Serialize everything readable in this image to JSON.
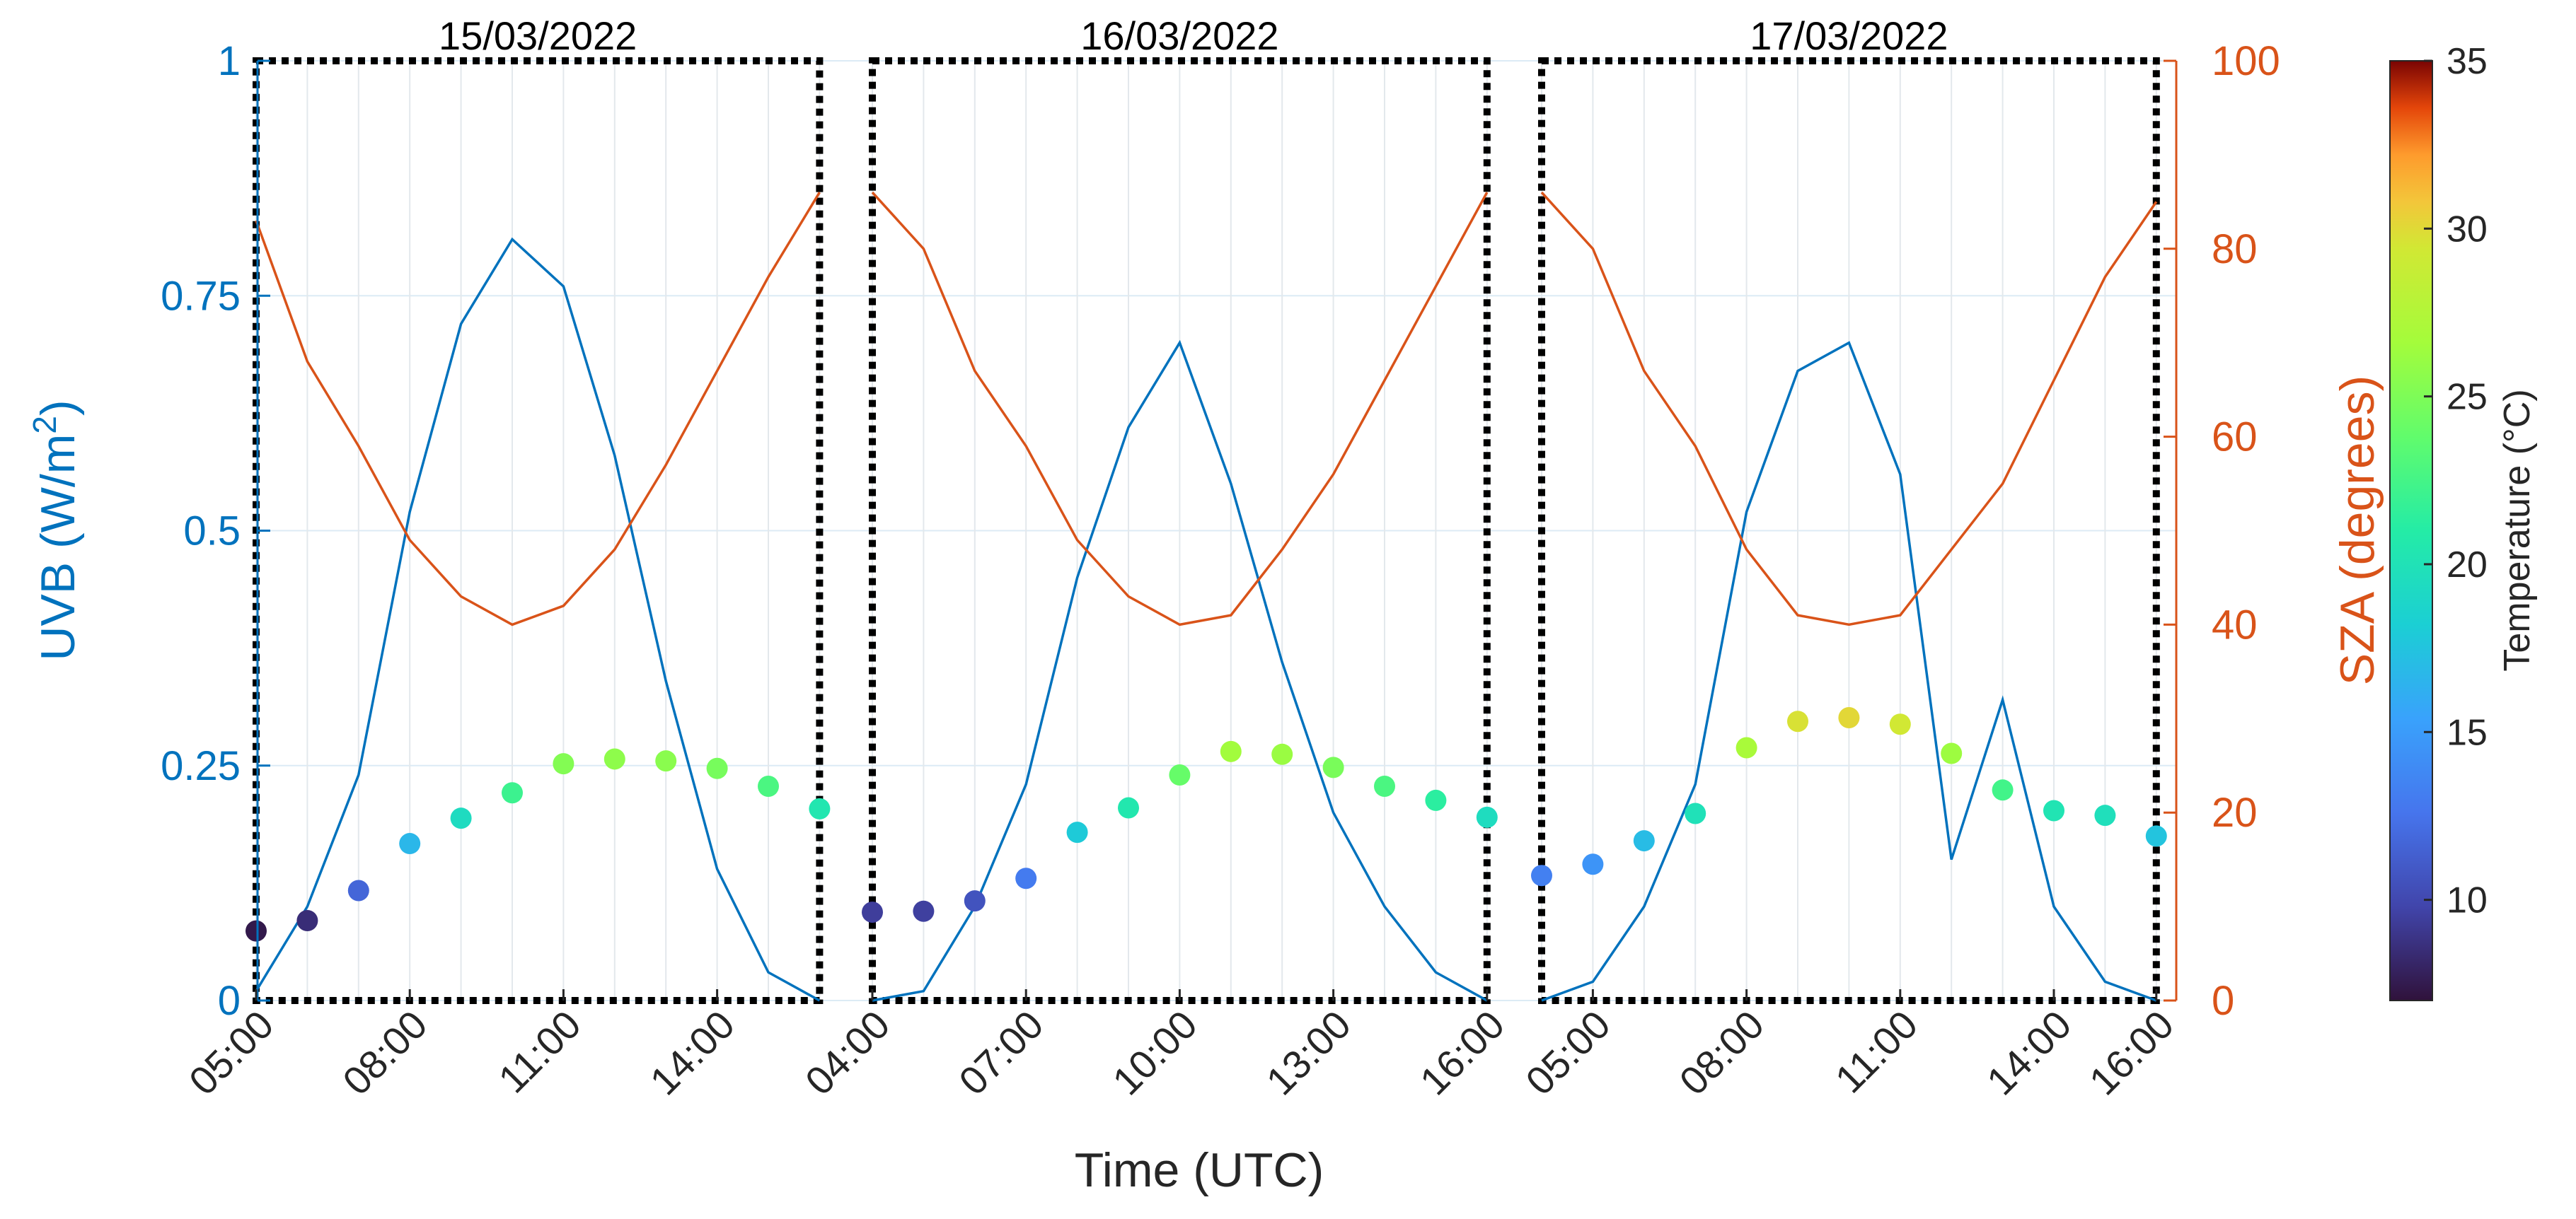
{
  "chart_data": {
    "type": "line",
    "xlabel": "Time (UTC)",
    "y_left": {
      "label_prefix": "UVB (W/m",
      "label_exp": "2",
      "label_suffix": ")",
      "lim": [
        0,
        1
      ],
      "ticks": [
        0,
        0.25,
        0.5,
        0.75,
        1
      ],
      "tick_labels": [
        "0",
        "0.25",
        "0.5",
        "0.75",
        "1"
      ],
      "color": "#0072BD"
    },
    "y_right": {
      "label": "SZA (degrees)",
      "lim": [
        0,
        100
      ],
      "ticks": [
        0,
        20,
        40,
        60,
        80,
        100
      ],
      "tick_labels": [
        "0",
        "20",
        "40",
        "60",
        "80",
        "100"
      ],
      "color": "#D95319"
    },
    "colorbar": {
      "label": "Temperature (°C)",
      "lim": [
        7,
        35
      ],
      "ticks": [
        10,
        15,
        20,
        25,
        30,
        35
      ],
      "tick_labels": [
        "10",
        "15",
        "20",
        "25",
        "30",
        "35"
      ],
      "colormap": "turbo"
    },
    "grid": true,
    "x_tick_labels": [
      "05:00",
      "08:00",
      "11:00",
      "14:00",
      "04:00",
      "07:00",
      "10:00",
      "13:00",
      "16:00",
      "05:00",
      "08:00",
      "11:00",
      "14:00",
      "16:00"
    ],
    "days": [
      {
        "label": "15/03/2022",
        "hours": [
          5,
          6,
          7,
          8,
          9,
          10,
          11,
          12,
          13,
          14,
          15,
          16
        ],
        "uvb": [
          0.01,
          0.1,
          0.24,
          0.52,
          0.72,
          0.81,
          0.76,
          0.58,
          0.34,
          0.14,
          0.03,
          0.0
        ],
        "sza": [
          83,
          68,
          59,
          49,
          43,
          40,
          42,
          48,
          57,
          67,
          77,
          86
        ],
        "temperature": [
          7.4,
          8.5,
          11.7,
          16.7,
          19.4,
          22.1,
          25.2,
          25.7,
          25.5,
          24.7,
          22.8,
          20.4
        ]
      },
      {
        "label": "16/03/2022",
        "hours": [
          4,
          5,
          6,
          7,
          8,
          9,
          10,
          11,
          12,
          13,
          14,
          15,
          16
        ],
        "uvb": [
          0.0,
          0.01,
          0.1,
          0.23,
          0.45,
          0.61,
          0.7,
          0.55,
          0.36,
          0.2,
          0.1,
          0.03,
          0.0
        ],
        "sza": [
          86,
          80,
          67,
          59,
          49,
          43,
          40,
          41,
          48,
          56,
          66,
          76,
          86
        ],
        "temperature": [
          9.4,
          9.5,
          10.6,
          13.0,
          17.9,
          20.5,
          24.0,
          26.5,
          26.2,
          24.8,
          22.8,
          21.3,
          19.5
        ]
      },
      {
        "label": "17/03/2022",
        "hours": [
          4,
          5,
          6,
          7,
          8,
          9,
          10,
          11,
          12,
          13,
          14,
          15,
          16
        ],
        "uvb": [
          0.0,
          0.02,
          0.1,
          0.23,
          0.52,
          0.67,
          0.7,
          0.56,
          0.15,
          0.32,
          0.1,
          0.02,
          0.0
        ],
        "sza": [
          86,
          80,
          67,
          59,
          48,
          41,
          40,
          41,
          48,
          55,
          66,
          77,
          85
        ],
        "temperature": [
          13.3,
          14.5,
          17.0,
          19.9,
          26.9,
          29.7,
          30.1,
          29.4,
          26.3,
          22.4,
          20.2,
          19.7,
          17.5
        ]
      }
    ]
  }
}
